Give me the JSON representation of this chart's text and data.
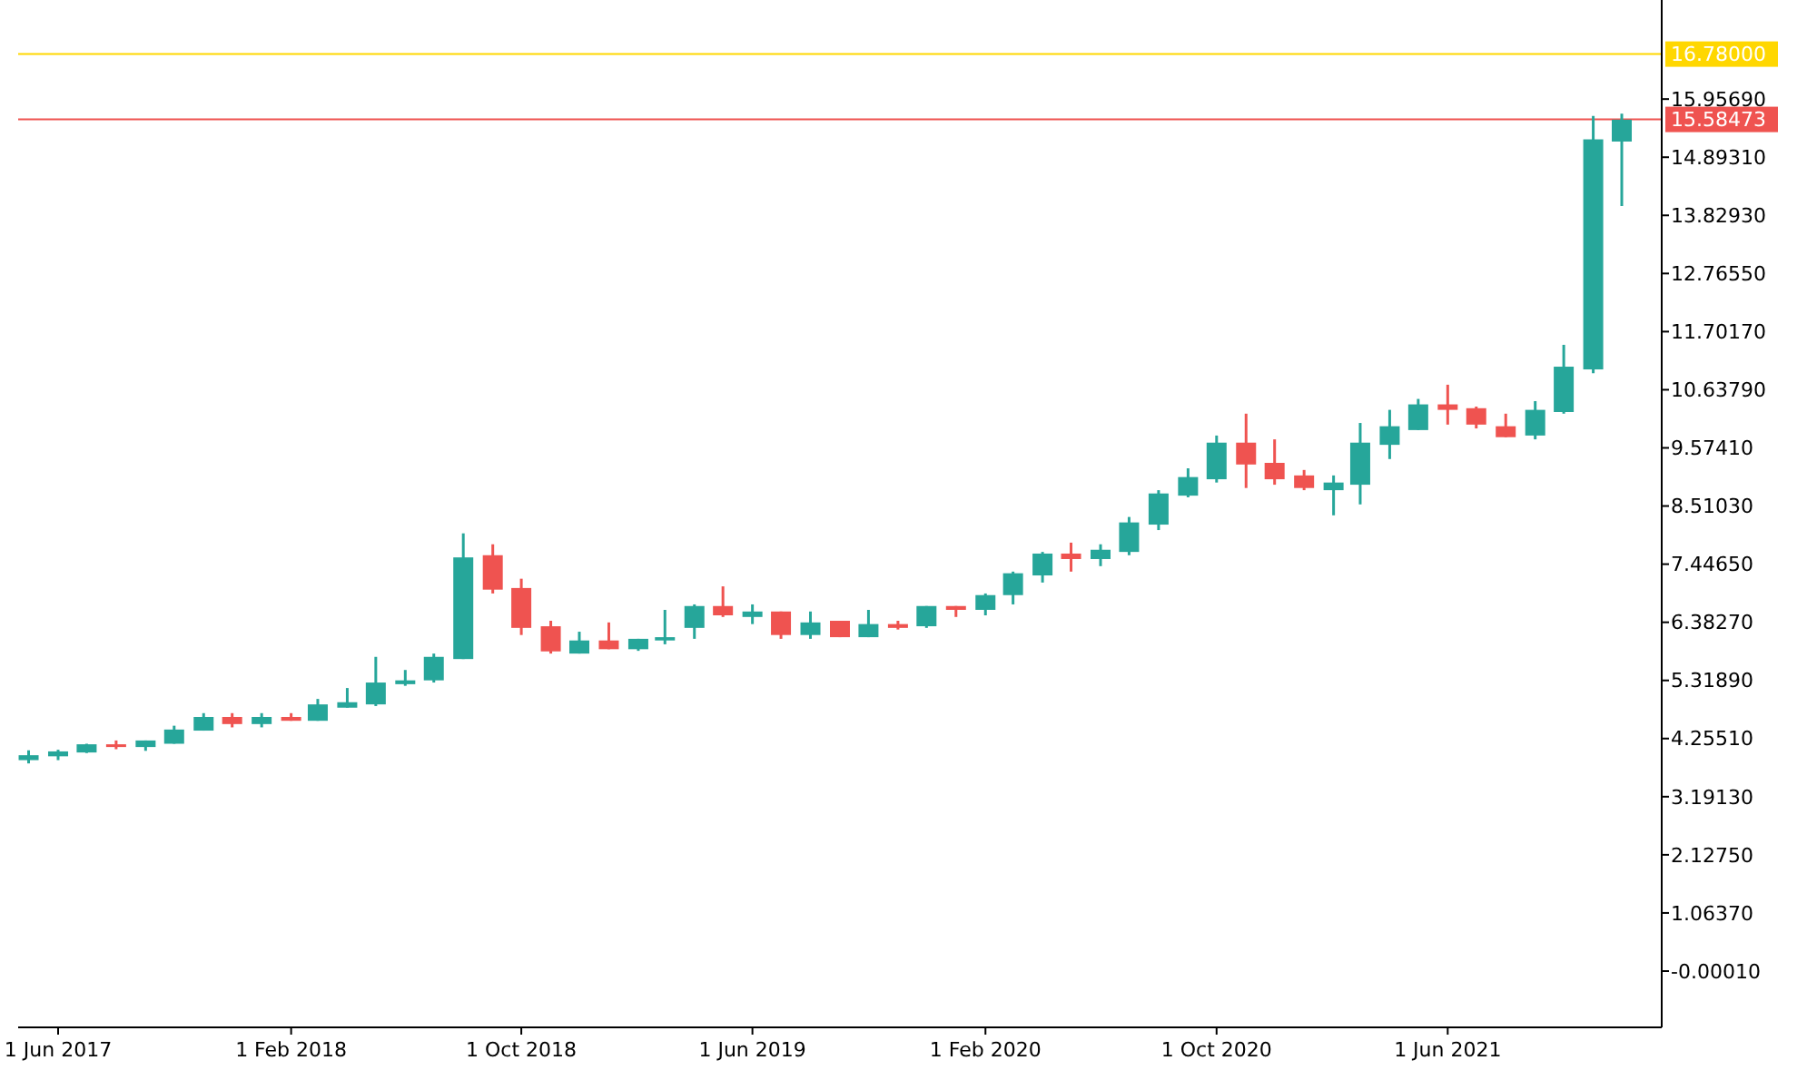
{
  "chart_data": {
    "type": "candlestick",
    "x": [
      "2017-05-01",
      "2017-06-01",
      "2017-07-01",
      "2017-08-01",
      "2017-09-01",
      "2017-10-01",
      "2017-11-01",
      "2017-12-01",
      "2018-01-01",
      "2018-02-01",
      "2018-03-01",
      "2018-04-01",
      "2018-05-01",
      "2018-06-01",
      "2018-07-01",
      "2018-08-01",
      "2018-09-01",
      "2018-10-01",
      "2018-11-01",
      "2018-12-01",
      "2019-01-01",
      "2019-02-01",
      "2019-03-01",
      "2019-04-01",
      "2019-05-01",
      "2019-06-01",
      "2019-07-01",
      "2019-08-01",
      "2019-09-01",
      "2019-10-01",
      "2019-11-01",
      "2019-12-01",
      "2020-01-01",
      "2020-02-01",
      "2020-03-01",
      "2020-04-01",
      "2020-05-01",
      "2020-06-01",
      "2020-07-01",
      "2020-08-01",
      "2020-09-01",
      "2020-10-01",
      "2020-11-01",
      "2020-12-01",
      "2021-01-01",
      "2021-02-01",
      "2021-03-01",
      "2021-04-01",
      "2021-05-01",
      "2021-06-01",
      "2021-07-01",
      "2021-08-01",
      "2021-09-01",
      "2021-10-01",
      "2021-11-01",
      "2021-12-01"
    ],
    "ohlc": [
      [
        3.86,
        4.04,
        3.8,
        3.95
      ],
      [
        3.93,
        4.05,
        3.86,
        4.02
      ],
      [
        4.0,
        4.16,
        3.99,
        4.15
      ],
      [
        4.15,
        4.22,
        4.06,
        4.1
      ],
      [
        4.1,
        4.22,
        4.03,
        4.22
      ],
      [
        4.16,
        4.49,
        4.16,
        4.42
      ],
      [
        4.4,
        4.72,
        4.4,
        4.65
      ],
      [
        4.65,
        4.72,
        4.46,
        4.52
      ],
      [
        4.52,
        4.72,
        4.46,
        4.65
      ],
      [
        4.65,
        4.72,
        4.58,
        4.58
      ],
      [
        4.58,
        4.98,
        4.58,
        4.88
      ],
      [
        4.82,
        5.18,
        4.82,
        4.92
      ],
      [
        4.88,
        5.75,
        4.85,
        5.28
      ],
      [
        5.25,
        5.51,
        5.22,
        5.32
      ],
      [
        5.32,
        5.81,
        5.28,
        5.75
      ],
      [
        5.71,
        8.01,
        5.71,
        7.57
      ],
      [
        7.61,
        7.81,
        6.91,
        6.98
      ],
      [
        7.01,
        7.18,
        6.15,
        6.28
      ],
      [
        6.31,
        6.41,
        5.81,
        5.85
      ],
      [
        5.81,
        6.21,
        5.81,
        6.05
      ],
      [
        6.05,
        6.38,
        5.89,
        5.89
      ],
      [
        5.89,
        6.08,
        5.86,
        6.08
      ],
      [
        6.05,
        6.61,
        5.98,
        6.11
      ],
      [
        6.28,
        6.71,
        6.08,
        6.68
      ],
      [
        6.68,
        7.04,
        6.48,
        6.51
      ],
      [
        6.48,
        6.71,
        6.35,
        6.58
      ],
      [
        6.58,
        6.58,
        6.08,
        6.15
      ],
      [
        6.15,
        6.58,
        6.08,
        6.38
      ],
      [
        6.41,
        6.41,
        6.11,
        6.11
      ],
      [
        6.11,
        6.61,
        6.11,
        6.35
      ],
      [
        6.35,
        6.41,
        6.25,
        6.28
      ],
      [
        6.31,
        6.68,
        6.28,
        6.68
      ],
      [
        6.68,
        6.68,
        6.48,
        6.61
      ],
      [
        6.61,
        6.91,
        6.51,
        6.88
      ],
      [
        6.88,
        7.31,
        6.71,
        7.28
      ],
      [
        7.24,
        7.67,
        7.11,
        7.64
      ],
      [
        7.64,
        7.84,
        7.31,
        7.54
      ],
      [
        7.54,
        7.81,
        7.41,
        7.71
      ],
      [
        7.67,
        8.31,
        7.61,
        8.21
      ],
      [
        8.17,
        8.8,
        8.07,
        8.74
      ],
      [
        8.7,
        9.2,
        8.67,
        9.04
      ],
      [
        9.0,
        9.8,
        8.94,
        9.67
      ],
      [
        9.67,
        10.2,
        8.84,
        9.27
      ],
      [
        9.3,
        9.73,
        8.9,
        9.0
      ],
      [
        9.07,
        9.17,
        8.8,
        8.84
      ],
      [
        8.8,
        9.07,
        8.34,
        8.94
      ],
      [
        8.9,
        10.03,
        8.54,
        9.67
      ],
      [
        9.63,
        10.27,
        9.37,
        9.97
      ],
      [
        9.9,
        10.47,
        9.9,
        10.37
      ],
      [
        10.37,
        10.73,
        10.0,
        10.27
      ],
      [
        10.3,
        10.33,
        9.93,
        10.0
      ],
      [
        9.97,
        10.2,
        9.77,
        9.77
      ],
      [
        9.8,
        10.43,
        9.73,
        10.27
      ],
      [
        10.23,
        11.46,
        10.2,
        11.06
      ],
      [
        11.01,
        15.65,
        10.94,
        15.22
      ],
      [
        15.18,
        15.69,
        14.0,
        15.58
      ]
    ],
    "colors": [
      "#26a69a",
      "#26a69a",
      "#26a69a",
      "#ef5350",
      "#26a69a",
      "#26a69a",
      "#26a69a",
      "#ef5350",
      "#26a69a",
      "#ef5350",
      "#26a69a",
      "#26a69a",
      "#26a69a",
      "#26a69a",
      "#26a69a",
      "#26a69a",
      "#ef5350",
      "#ef5350",
      "#ef5350",
      "#26a69a",
      "#ef5350",
      "#26a69a",
      "#26a69a",
      "#26a69a",
      "#ef5350",
      "#26a69a",
      "#ef5350",
      "#26a69a",
      "#ef5350",
      "#26a69a",
      "#ef5350",
      "#26a69a",
      "#ef5350",
      "#26a69a",
      "#26a69a",
      "#26a69a",
      "#ef5350",
      "#26a69a",
      "#26a69a",
      "#26a69a",
      "#26a69a",
      "#26a69a",
      "#ef5350",
      "#ef5350",
      "#ef5350",
      "#26a69a",
      "#26a69a",
      "#26a69a",
      "#26a69a",
      "#ef5350",
      "#ef5350",
      "#ef5350",
      "#26a69a",
      "#26a69a",
      "#26a69a",
      "#26a69a"
    ],
    "xlim": [
      "2017-04-20",
      "2022-01-12"
    ],
    "xticks": [
      {
        "value": "2017-06-01",
        "label": "1 Jun 2017"
      },
      {
        "value": "2018-02-01",
        "label": "1 Feb 2018"
      },
      {
        "value": "2018-10-01",
        "label": "1 Oct 2018"
      },
      {
        "value": "2019-06-01",
        "label": "1 Jun 2019"
      },
      {
        "value": "2020-02-01",
        "label": "1 Feb 2020"
      },
      {
        "value": "2020-10-01",
        "label": "1 Oct 2020"
      },
      {
        "value": "2021-06-01",
        "label": "1 Jun 2021"
      }
    ],
    "ylim": [
      -1.03,
      17.77
    ],
    "yticks": [
      {
        "value": -0.0001,
        "label": "-0.00010"
      },
      {
        "value": 1.0637,
        "label": "1.06370"
      },
      {
        "value": 2.1275,
        "label": "2.12750"
      },
      {
        "value": 3.1913,
        "label": "3.19130"
      },
      {
        "value": 4.2551,
        "label": "4.25510"
      },
      {
        "value": 5.3189,
        "label": "5.31890"
      },
      {
        "value": 6.3827,
        "label": "6.38270"
      },
      {
        "value": 7.4465,
        "label": "7.44650"
      },
      {
        "value": 8.5103,
        "label": "8.51030"
      },
      {
        "value": 9.5741,
        "label": "9.57410"
      },
      {
        "value": 10.6379,
        "label": "10.63790"
      },
      {
        "value": 11.7017,
        "label": "11.70170"
      },
      {
        "value": 12.7655,
        "label": "12.76550"
      },
      {
        "value": 13.8293,
        "label": "13.82930"
      },
      {
        "value": 14.8931,
        "label": "14.89310"
      },
      {
        "value": 15.9569,
        "label": "15.95690"
      }
    ],
    "ref_lines": [
      {
        "axis": "y",
        "value": 16.78,
        "label": "16.78000",
        "color": "#ffd700"
      },
      {
        "axis": "y",
        "value": 15.58473,
        "label": "15.58473",
        "color": "#ef5350"
      }
    ]
  }
}
